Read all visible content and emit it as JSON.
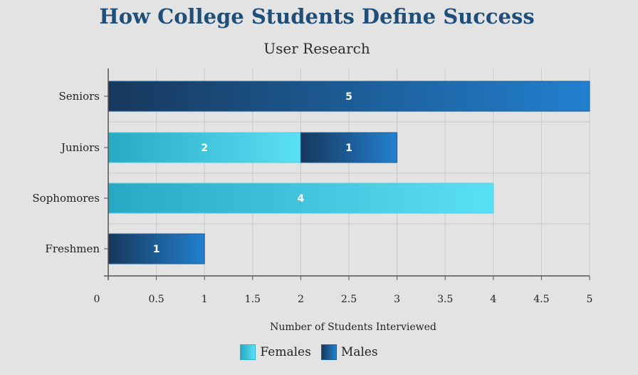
{
  "chart_data": {
    "type": "bar",
    "orientation": "horizontal",
    "stacked": true,
    "title": "How College Students Define Success",
    "subtitle": "User Research",
    "xlabel": "Number of Students Interviewed",
    "ylabel": "",
    "categories": [
      "Seniors",
      "Juniors",
      "Sophomores",
      "Freshmen"
    ],
    "series": [
      {
        "name": "Females",
        "values": [
          0,
          2,
          4,
          0
        ]
      },
      {
        "name": "Males",
        "values": [
          5,
          1,
          0,
          1
        ]
      }
    ],
    "xlim": [
      0,
      5
    ],
    "x_ticks": [
      "0",
      "0.5",
      "1",
      "1.5",
      "2",
      "2.5",
      "3",
      "3.5",
      "4",
      "4.5",
      "5"
    ],
    "grid": true,
    "legend_position": "bottom",
    "colors": {
      "Females": [
        "#27a9c2",
        "#5ae0f5"
      ],
      "Males": [
        "#17385c",
        "#2280cf"
      ]
    }
  }
}
